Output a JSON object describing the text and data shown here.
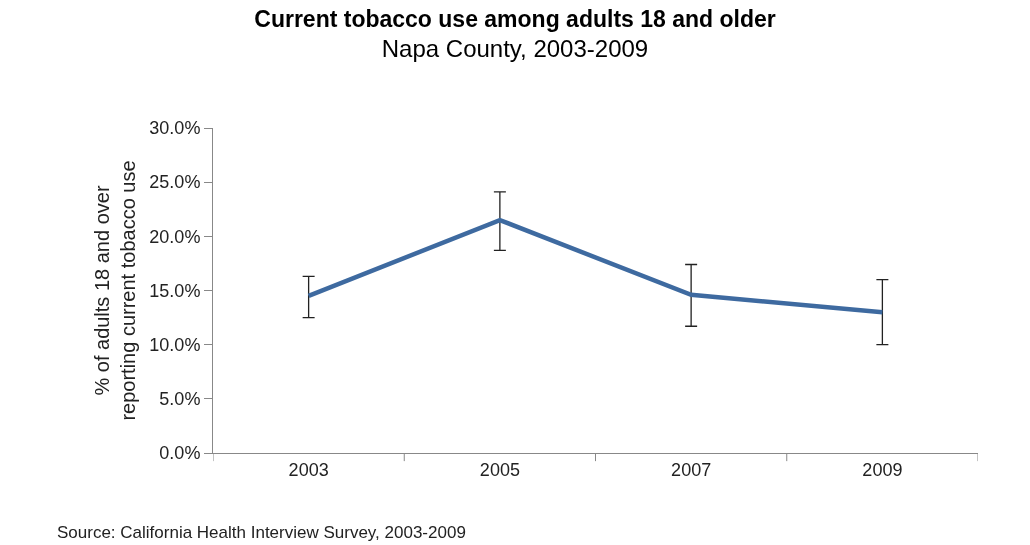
{
  "chart_data": {
    "type": "line",
    "title": "Current tobacco use among adults 18 and older",
    "subtitle": "Napa County, 2003-2009",
    "ylabel": "% of adults 18 and over reporting current tobacco use",
    "categories": [
      "2003",
      "2005",
      "2007",
      "2009"
    ],
    "series": [
      {
        "color": "#3e6aa0",
        "values": [
          14.5,
          21.5,
          14.6,
          13.0
        ],
        "errors": [
          [
            12.5,
            16.3
          ],
          [
            18.7,
            24.1
          ],
          [
            11.7,
            17.4
          ],
          [
            10.0,
            16.0
          ]
        ]
      }
    ],
    "ylim": [
      0,
      30
    ],
    "yticks": [
      {
        "value": 0,
        "label": "0.0%"
      },
      {
        "value": 5,
        "label": "5.0%"
      },
      {
        "value": 10,
        "label": "10.0%"
      },
      {
        "value": 15,
        "label": "15.0%"
      },
      {
        "value": 20,
        "label": "20.0%"
      },
      {
        "value": 25,
        "label": "25.0%"
      },
      {
        "value": 30,
        "label": "30.0%"
      }
    ],
    "marker": "none",
    "line_style": "solid",
    "annotations": [
      "Source: California Health Interview Survey, 2003-2009"
    ]
  }
}
